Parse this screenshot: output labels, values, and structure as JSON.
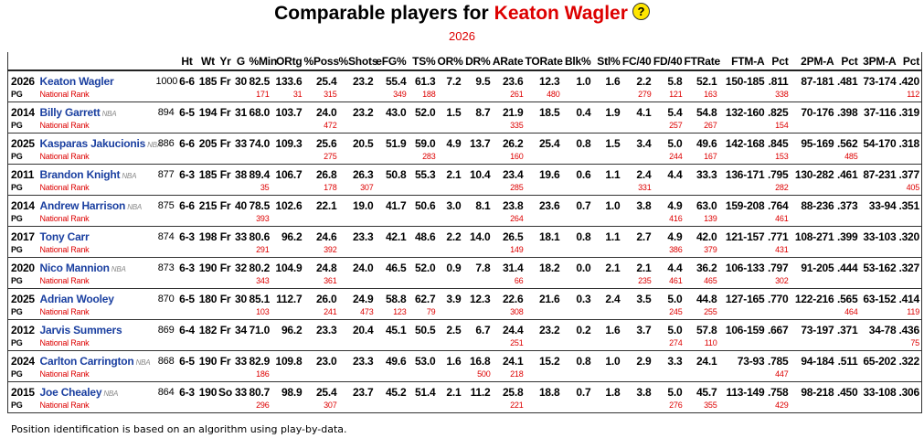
{
  "header": {
    "title": "Comparable players for",
    "player": "Keaton Wagler",
    "help_icon": "?",
    "season": "2026"
  },
  "table": {
    "columns": [
      "Ht",
      "Wt",
      "Yr",
      "G",
      "%Min",
      "ORtg",
      "%Poss",
      "%Shots",
      "eFG%",
      "TS%",
      "OR%",
      "DR%",
      "ARate",
      "TORate",
      "Blk%",
      "Stl%",
      "FC/40",
      "FD/40",
      "FTRate",
      "FTM-A",
      "Pct",
      "2PM-A",
      "Pct",
      "3PM-A",
      "Pct"
    ],
    "rows": [
      {
        "year": "2026",
        "name": "Keaton Wagler",
        "score": "1000",
        "stats": [
          "6-6",
          "185",
          "Fr",
          "30",
          "82.5",
          "133.6",
          "25.4",
          "23.2",
          "55.4",
          "61.3",
          "7.2",
          "9.5",
          "23.6",
          "12.3",
          "1.0",
          "1.6",
          "2.2",
          "5.8",
          "52.1",
          "150-185",
          ".811",
          "87-181",
          ".481",
          "73-174",
          ".420"
        ],
        "position": "PG",
        "rank_label": "National Rank",
        "ranks": [
          "171",
          "31",
          "315",
          null,
          "349",
          "188",
          null,
          null,
          "261",
          "480",
          null,
          null,
          "279",
          "121",
          "163",
          null,
          "338",
          null,
          null,
          null,
          "112"
        ]
      },
      {
        "year": "2014",
        "name": "Billy Garrett",
        "tag": "NBA",
        "score": "894",
        "stats": [
          "6-5",
          "194",
          "Fr",
          "31",
          "68.0",
          "103.7",
          "24.0",
          "23.2",
          "43.0",
          "52.0",
          "1.5",
          "8.7",
          "21.9",
          "18.5",
          "0.4",
          "1.9",
          "4.1",
          "5.4",
          "54.8",
          "132-160",
          ".825",
          "70-176",
          ".398",
          "37-116",
          ".319"
        ],
        "position": "PG",
        "rank_label": "National Rank",
        "ranks": [
          null,
          null,
          "472",
          null,
          null,
          null,
          null,
          null,
          "335",
          null,
          null,
          null,
          null,
          "257",
          "267",
          null,
          "154",
          null,
          null,
          null,
          null
        ]
      },
      {
        "year": "2025",
        "name": "Kasparas Jakucionis",
        "tag": "NBA",
        "score": "886",
        "stats": [
          "6-6",
          "205",
          "Fr",
          "33",
          "74.0",
          "109.3",
          "25.6",
          "20.5",
          "51.9",
          "59.0",
          "4.9",
          "13.7",
          "26.2",
          "25.4",
          "0.8",
          "1.5",
          "3.4",
          "5.0",
          "49.6",
          "142-168",
          ".845",
          "95-169",
          ".562",
          "54-170",
          ".318"
        ],
        "position": "PG",
        "rank_label": "National Rank",
        "ranks": [
          null,
          null,
          "275",
          null,
          null,
          "283",
          null,
          null,
          "160",
          null,
          null,
          null,
          null,
          "244",
          "167",
          null,
          "153",
          null,
          "485",
          null,
          null
        ]
      },
      {
        "year": "2011",
        "name": "Brandon Knight",
        "tag": "NBA",
        "score": "877",
        "stats": [
          "6-3",
          "185",
          "Fr",
          "38",
          "89.4",
          "106.7",
          "26.8",
          "26.3",
          "50.8",
          "55.3",
          "2.1",
          "10.4",
          "23.4",
          "19.6",
          "0.6",
          "1.1",
          "2.4",
          "4.4",
          "33.3",
          "136-171",
          ".795",
          "130-282",
          ".461",
          "87-231",
          ".377"
        ],
        "position": "PG",
        "rank_label": "National Rank",
        "ranks": [
          "35",
          null,
          "178",
          "307",
          null,
          null,
          null,
          null,
          "285",
          null,
          null,
          null,
          "331",
          null,
          null,
          null,
          "282",
          null,
          null,
          null,
          "405"
        ]
      },
      {
        "year": "2014",
        "name": "Andrew Harrison",
        "tag": "NBA",
        "score": "875",
        "stats": [
          "6-6",
          "215",
          "Fr",
          "40",
          "78.5",
          "102.6",
          "22.1",
          "19.0",
          "41.7",
          "50.6",
          "3.0",
          "8.1",
          "23.8",
          "23.6",
          "0.7",
          "1.0",
          "3.8",
          "4.9",
          "63.0",
          "159-208",
          ".764",
          "88-236",
          ".373",
          "33-94",
          ".351"
        ],
        "position": "PG",
        "rank_label": "National Rank",
        "ranks": [
          "393",
          null,
          null,
          null,
          null,
          null,
          null,
          null,
          "264",
          null,
          null,
          null,
          null,
          "416",
          "139",
          null,
          "461",
          null,
          null,
          null,
          null
        ]
      },
      {
        "year": "2017",
        "name": "Tony Carr",
        "score": "874",
        "stats": [
          "6-3",
          "198",
          "Fr",
          "33",
          "80.6",
          "96.2",
          "24.6",
          "23.3",
          "42.1",
          "48.6",
          "2.2",
          "14.0",
          "26.5",
          "18.1",
          "0.8",
          "1.1",
          "2.7",
          "4.9",
          "42.0",
          "121-157",
          ".771",
          "108-271",
          ".399",
          "33-103",
          ".320"
        ],
        "position": "PG",
        "rank_label": "National Rank",
        "ranks": [
          "291",
          null,
          "392",
          null,
          null,
          null,
          null,
          null,
          "149",
          null,
          null,
          null,
          null,
          "386",
          "379",
          null,
          "431",
          null,
          null,
          null,
          null
        ]
      },
      {
        "year": "2020",
        "name": "Nico Mannion",
        "tag": "NBA",
        "score": "873",
        "stats": [
          "6-3",
          "190",
          "Fr",
          "32",
          "80.2",
          "104.9",
          "24.8",
          "24.0",
          "46.5",
          "52.0",
          "0.9",
          "7.8",
          "31.4",
          "18.2",
          "0.0",
          "2.1",
          "2.1",
          "4.4",
          "36.2",
          "106-133",
          ".797",
          "91-205",
          ".444",
          "53-162",
          ".327"
        ],
        "position": "PG",
        "rank_label": "National Rank",
        "ranks": [
          "343",
          null,
          "361",
          null,
          null,
          null,
          null,
          null,
          "66",
          null,
          null,
          null,
          "235",
          "461",
          "465",
          null,
          "302",
          null,
          null,
          null,
          null
        ]
      },
      {
        "year": "2025",
        "name": "Adrian Wooley",
        "score": "870",
        "stats": [
          "6-5",
          "180",
          "Fr",
          "30",
          "85.1",
          "112.7",
          "26.0",
          "24.9",
          "58.8",
          "62.7",
          "3.9",
          "12.3",
          "22.6",
          "21.6",
          "0.3",
          "2.4",
          "3.5",
          "5.0",
          "44.8",
          "127-165",
          ".770",
          "122-216",
          ".565",
          "63-152",
          ".414"
        ],
        "position": "PG",
        "rank_label": "National Rank",
        "ranks": [
          "103",
          null,
          "241",
          "473",
          "123",
          "79",
          null,
          null,
          "308",
          null,
          null,
          null,
          null,
          "245",
          "255",
          null,
          null,
          null,
          "464",
          null,
          "119"
        ]
      },
      {
        "year": "2012",
        "name": "Jarvis Summers",
        "score": "869",
        "stats": [
          "6-4",
          "182",
          "Fr",
          "34",
          "71.0",
          "96.2",
          "23.3",
          "20.4",
          "45.1",
          "50.5",
          "2.5",
          "6.7",
          "24.4",
          "23.2",
          "0.2",
          "1.6",
          "3.7",
          "5.0",
          "57.8",
          "106-159",
          ".667",
          "73-197",
          ".371",
          "34-78",
          ".436"
        ],
        "position": "PG",
        "rank_label": "National Rank",
        "ranks": [
          null,
          null,
          null,
          null,
          null,
          null,
          null,
          null,
          "251",
          null,
          null,
          null,
          null,
          "274",
          "110",
          null,
          null,
          null,
          null,
          null,
          "75"
        ]
      },
      {
        "year": "2024",
        "name": "Carlton Carrington",
        "tag": "NBA",
        "score": "868",
        "stats": [
          "6-5",
          "190",
          "Fr",
          "33",
          "82.9",
          "109.8",
          "23.0",
          "23.3",
          "49.6",
          "53.0",
          "1.6",
          "16.8",
          "24.1",
          "15.2",
          "0.8",
          "1.0",
          "2.9",
          "3.3",
          "24.1",
          "73-93",
          ".785",
          "94-184",
          ".511",
          "65-202",
          ".322"
        ],
        "position": "PG",
        "rank_label": "National Rank",
        "ranks": [
          "186",
          null,
          null,
          null,
          null,
          null,
          null,
          "500",
          "218",
          null,
          null,
          null,
          null,
          null,
          null,
          null,
          "447",
          null,
          null,
          null,
          null
        ]
      },
      {
        "year": "2015",
        "name": "Joe Chealey",
        "tag": "NBA",
        "score": "864",
        "stats": [
          "6-3",
          "190",
          "So",
          "33",
          "80.7",
          "98.9",
          "25.4",
          "23.7",
          "45.2",
          "51.4",
          "2.1",
          "11.2",
          "25.8",
          "18.8",
          "0.7",
          "1.8",
          "3.8",
          "5.0",
          "45.7",
          "113-149",
          ".758",
          "98-218",
          ".450",
          "33-108",
          ".306"
        ],
        "position": "PG",
        "rank_label": "National Rank",
        "ranks": [
          "296",
          null,
          "307",
          null,
          null,
          null,
          null,
          null,
          "221",
          null,
          null,
          null,
          null,
          "276",
          "355",
          null,
          "429",
          null,
          null,
          null,
          null
        ]
      }
    ]
  },
  "footer": {
    "note": "Position identification is based on an algorithm using play-by-data."
  }
}
